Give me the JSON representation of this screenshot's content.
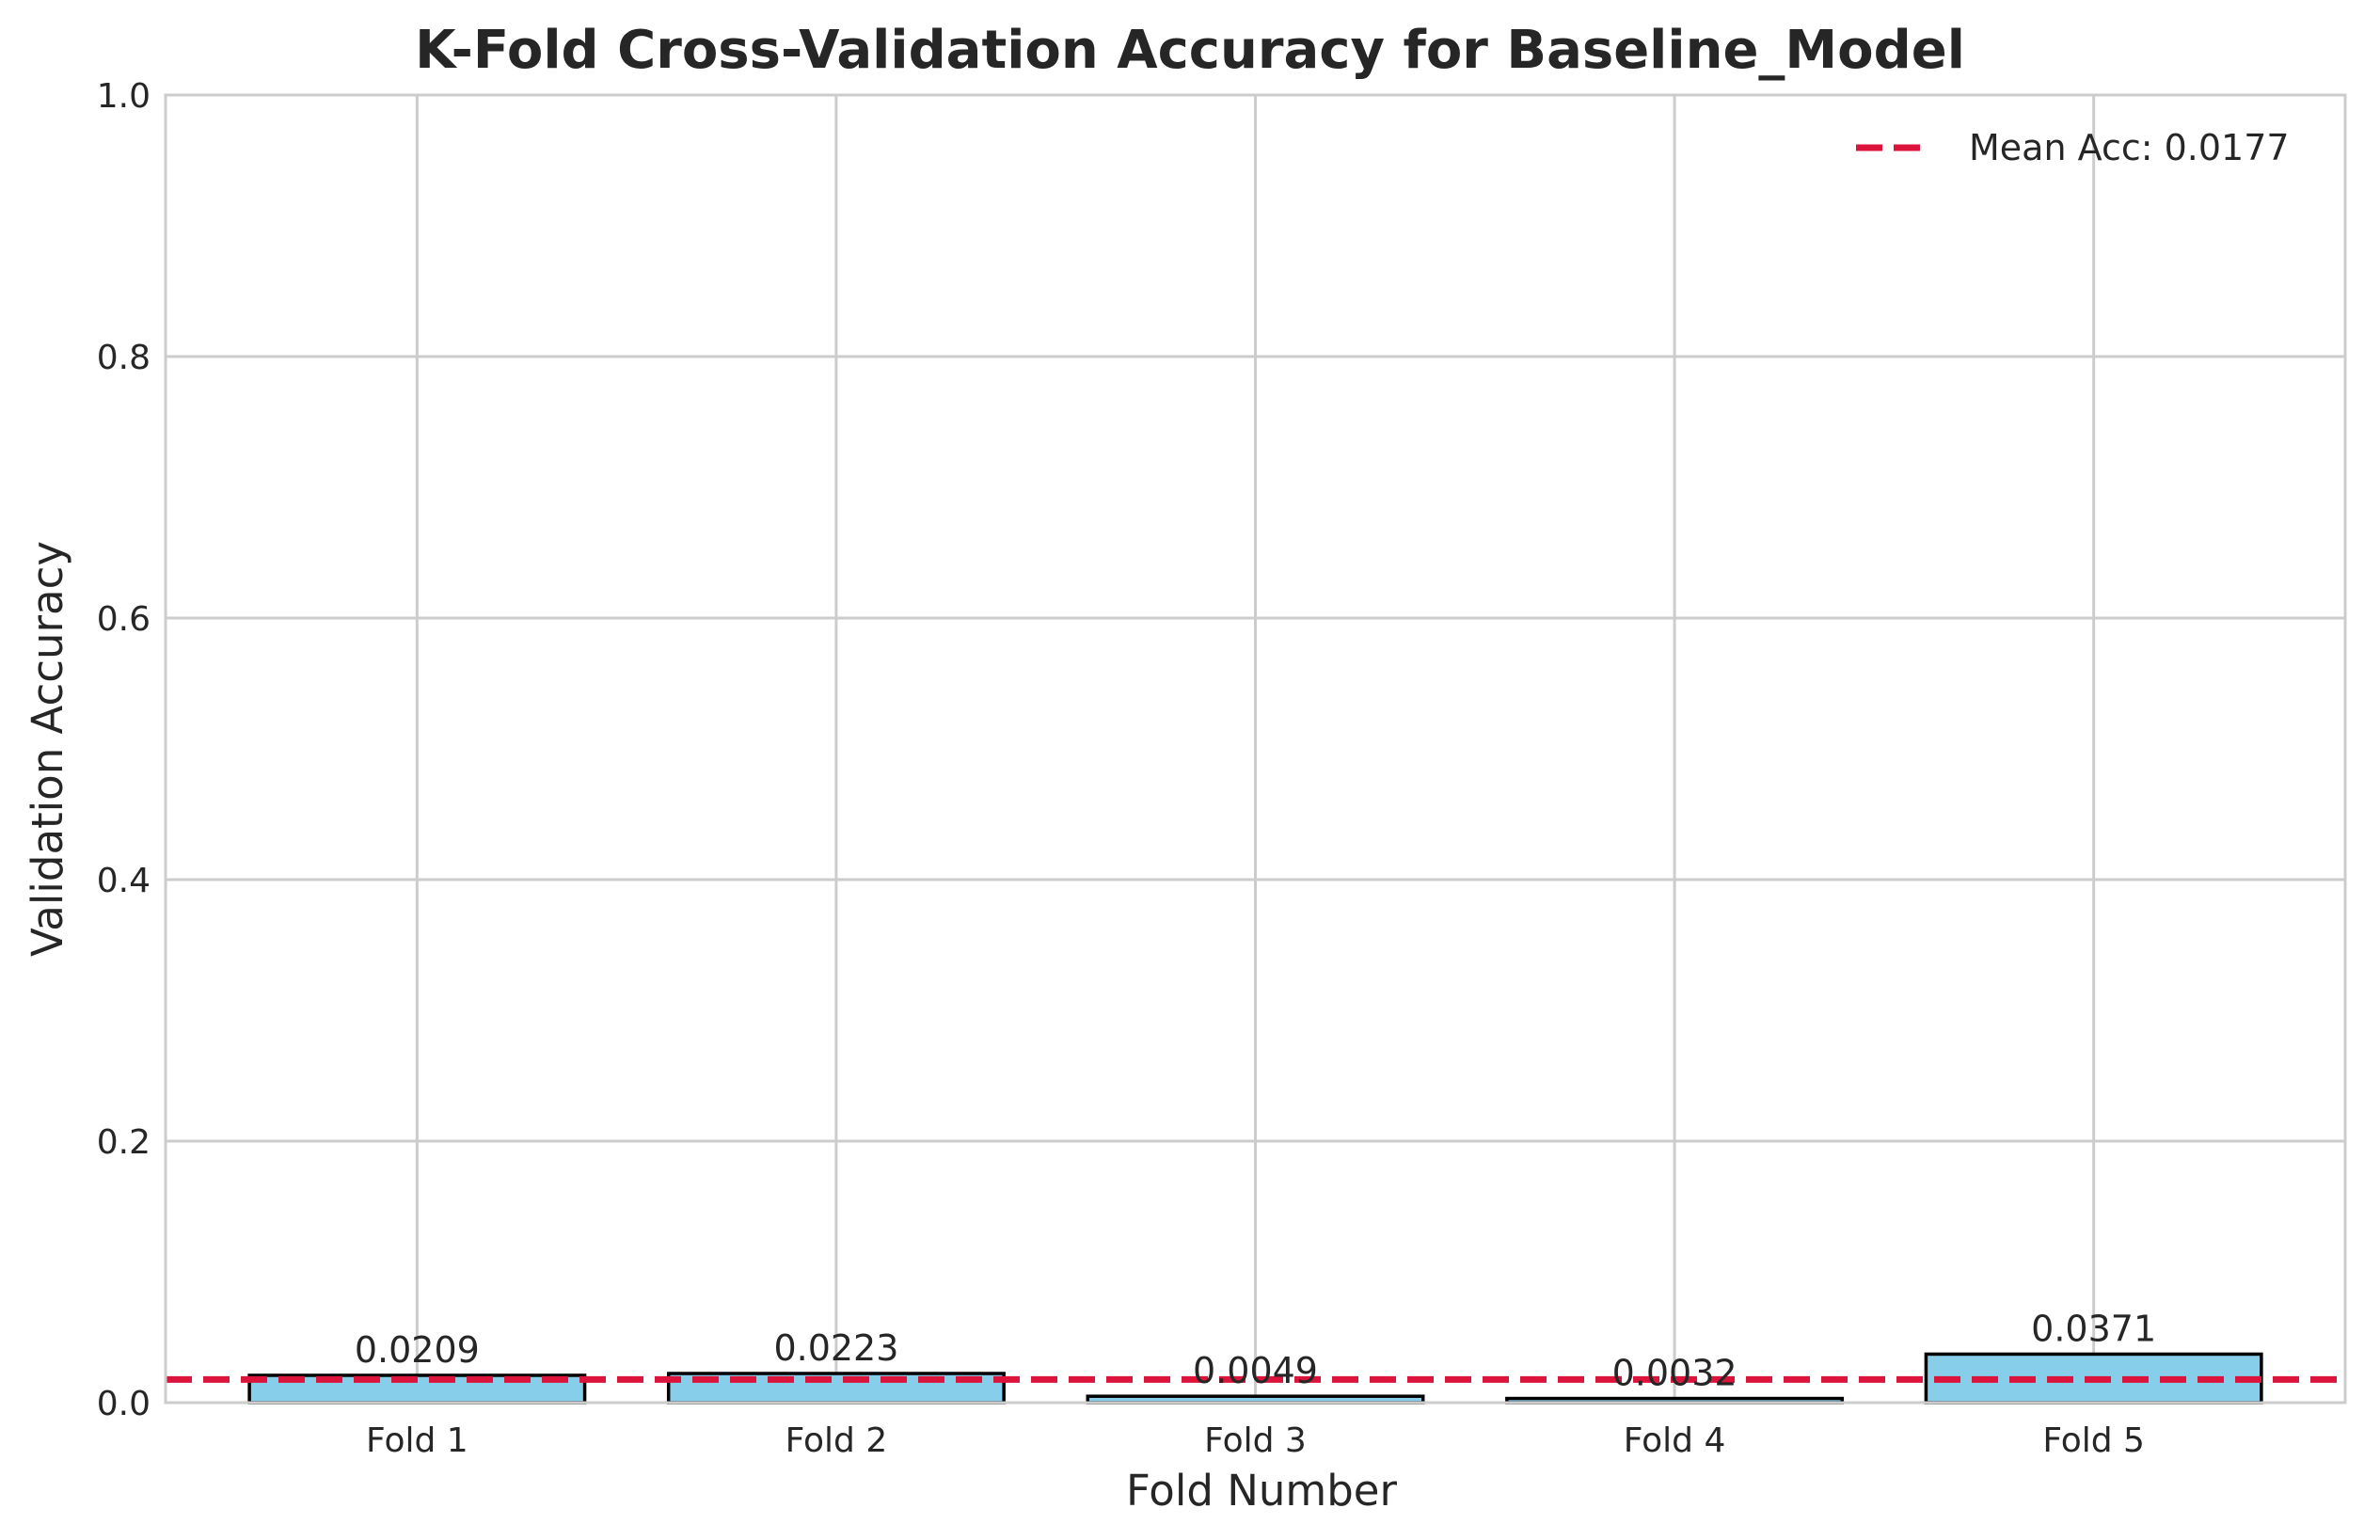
{
  "chart_data": {
    "type": "bar",
    "title": "K-Fold Cross-Validation Accuracy for Baseline_Model",
    "xlabel": "Fold Number",
    "ylabel": "Validation Accuracy",
    "categories": [
      "Fold 1",
      "Fold 2",
      "Fold 3",
      "Fold 4",
      "Fold 5"
    ],
    "values": [
      0.0209,
      0.0223,
      0.0049,
      0.0032,
      0.0371
    ],
    "value_labels": [
      "0.0209",
      "0.0223",
      "0.0049",
      "0.0032",
      "0.0371"
    ],
    "ylim": [
      0,
      1.0
    ],
    "yticks": [
      0.0,
      0.2,
      0.4,
      0.6,
      0.8,
      1.0
    ],
    "ytick_labels": [
      "0.0",
      "0.2",
      "0.4",
      "0.6",
      "0.8",
      "1.0"
    ],
    "grid": true,
    "mean": 0.0177,
    "legend": {
      "placement": "top-right",
      "entries": [
        "Mean Acc: 0.0177"
      ]
    },
    "colors": {
      "bar_fill": "#87ceeb",
      "bar_edge": "#000000",
      "mean_line": "#dc143c"
    }
  }
}
